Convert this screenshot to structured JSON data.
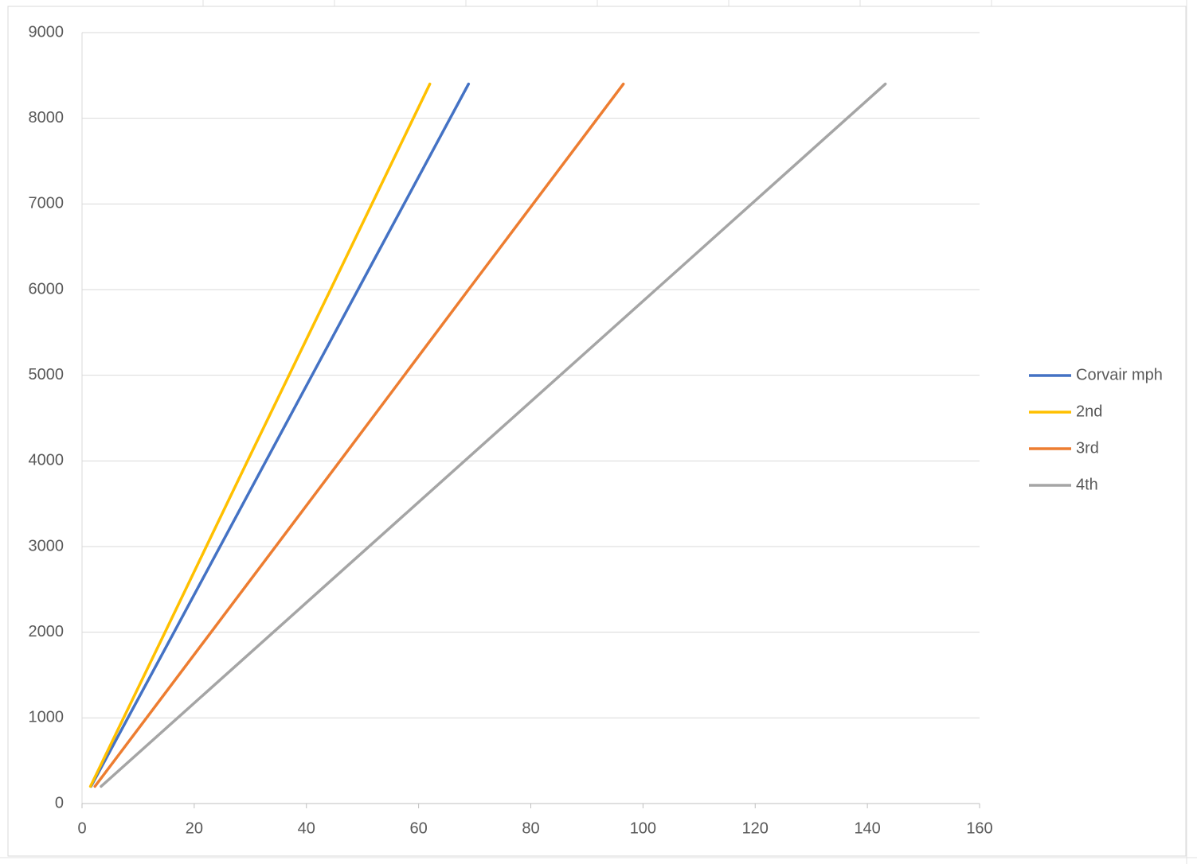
{
  "chart_data": {
    "type": "line",
    "series": [
      {
        "name": "Corvair mph",
        "color": "#4472c4",
        "x": [
          1.6,
          16.4,
          32.8,
          49.2,
          68.9
        ],
        "values": [
          200,
          2000,
          4000,
          6000,
          8400
        ]
      },
      {
        "name": "2nd",
        "color": "#ffc000",
        "x": [
          1.5,
          14.8,
          29.5,
          44.3,
          62.0
        ],
        "values": [
          200,
          2000,
          4000,
          6000,
          8400
        ]
      },
      {
        "name": "3rd",
        "color": "#ed7d31",
        "x": [
          2.3,
          23.0,
          46.0,
          68.9,
          96.5
        ],
        "values": [
          200,
          2000,
          4000,
          6000,
          8400
        ]
      },
      {
        "name": "4th",
        "color": "#a5a5a5",
        "x": [
          3.4,
          34.1,
          68.2,
          102.3,
          143.2
        ],
        "values": [
          200,
          2000,
          4000,
          6000,
          8400
        ]
      }
    ],
    "xlim": [
      0,
      160
    ],
    "xticks": [
      0,
      20,
      40,
      60,
      80,
      100,
      120,
      140,
      160
    ],
    "ylim": [
      0,
      9000
    ],
    "yticks": [
      0,
      1000,
      2000,
      3000,
      4000,
      5000,
      6000,
      7000,
      8000,
      9000
    ],
    "grid": true,
    "legend": "right"
  }
}
